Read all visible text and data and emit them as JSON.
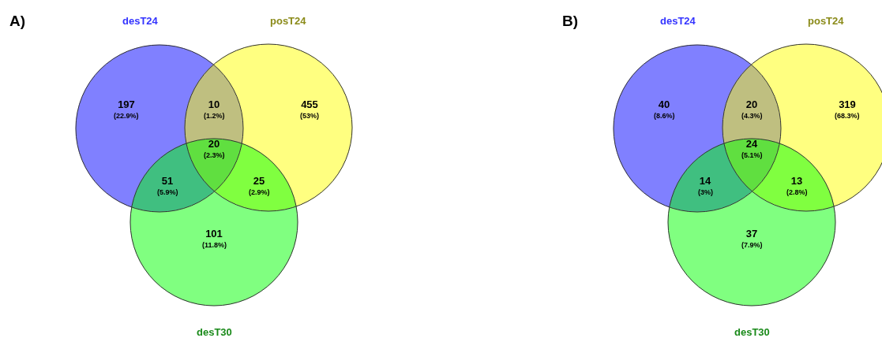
{
  "chart_data": [
    {
      "type": "other",
      "title": "A)",
      "categories": [
        null,
        null,
        null,
        null,
        null,
        null,
        null
      ],
      "values": [
        197,
        10,
        455,
        20,
        51,
        25,
        101
      ],
      "colors": [
        "#8080ff",
        "#bfbf80",
        "#ffff80",
        "#60df40",
        "#40bf80",
        "#80ff40",
        "#80ff80"
      ],
      "data_labels": true,
      "annotations": [
        "desT24",
        "posT24",
        "desT30",
        "(22.9%)",
        "(1.2%)",
        "(53%)",
        "(2.3%)",
        "(5.9%)",
        "(2.9%)",
        "(11.8%)"
      ]
    },
    {
      "type": "other",
      "title": "B)",
      "categories": [
        null,
        null,
        null,
        null,
        null,
        null,
        null
      ],
      "values": [
        40,
        20,
        319,
        24,
        14,
        13,
        37
      ],
      "colors": [
        "#8080ff",
        "#bfbf80",
        "#ffff80",
        "#60df40",
        "#40bf80",
        "#80ff40",
        "#80ff80"
      ],
      "data_labels": true,
      "annotations": [
        "desT24",
        "posT24",
        "desT30",
        "(8.6%)",
        "(4.3%)",
        "(68.3%)",
        "(5.1%)",
        "(3%)",
        "(2.8%)",
        "(7.9%)"
      ]
    }
  ]
}
